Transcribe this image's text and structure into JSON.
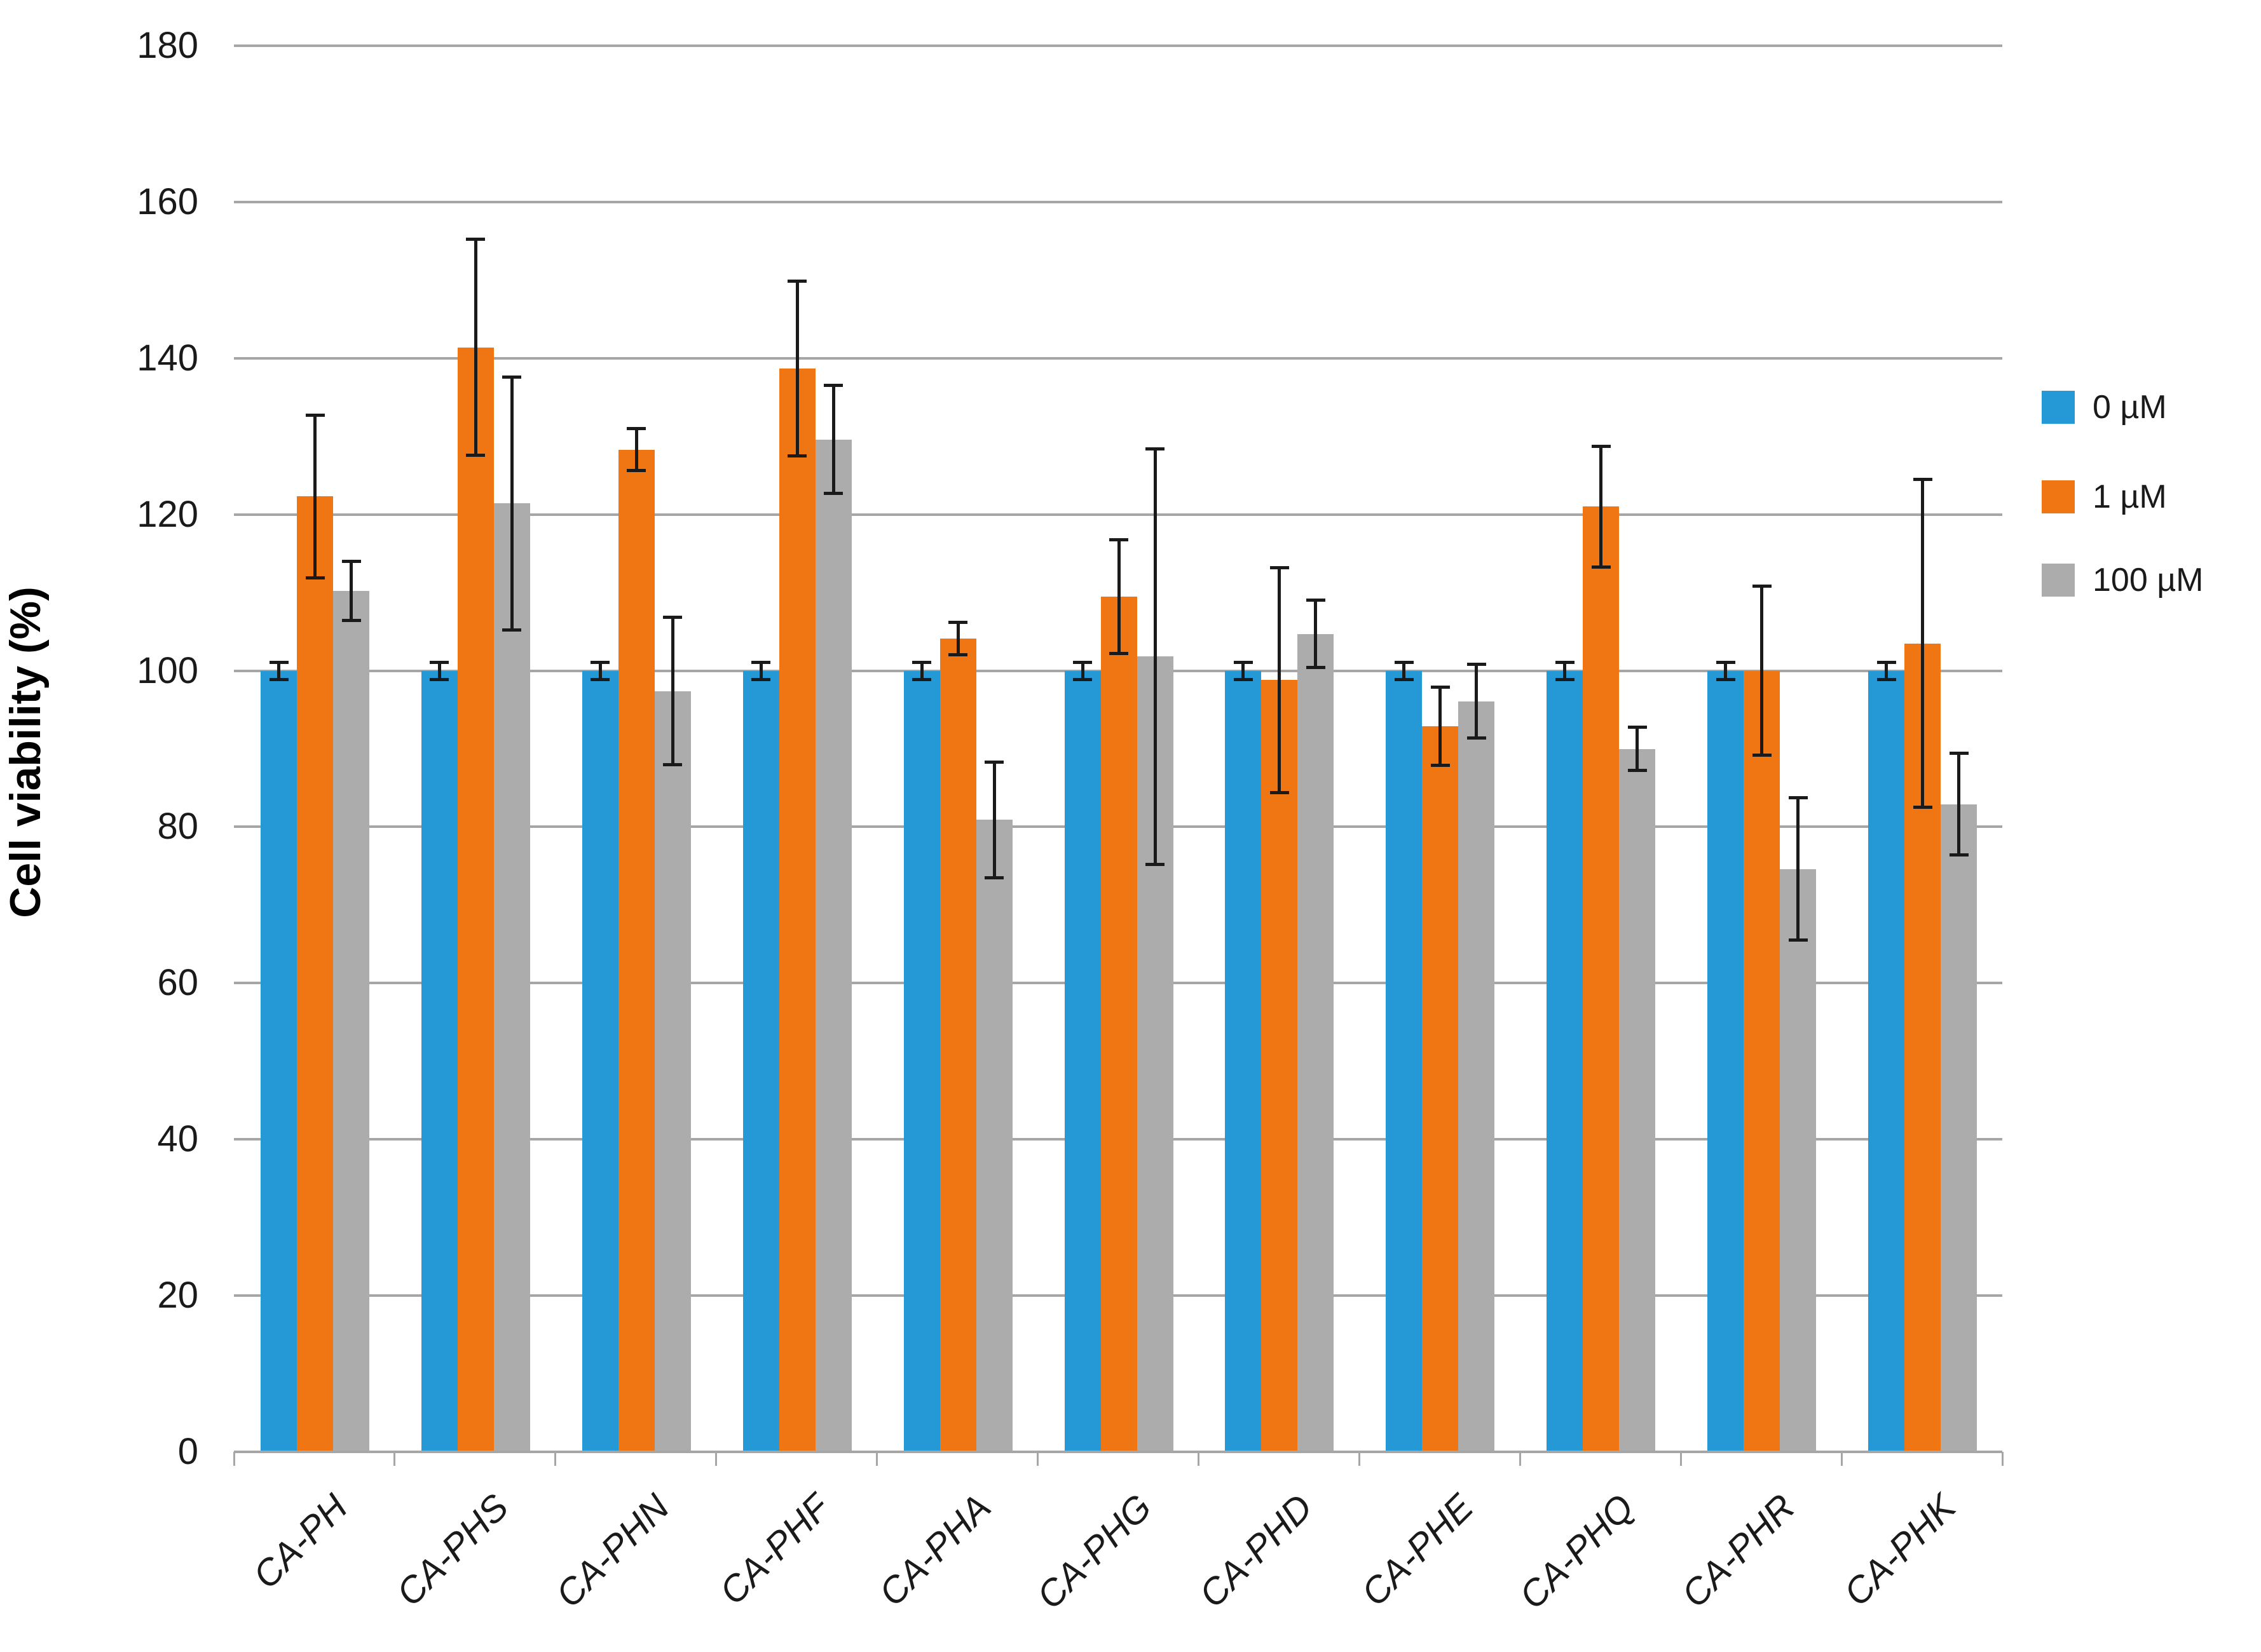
{
  "chart_data": {
    "type": "bar",
    "title": "",
    "xlabel": "",
    "ylabel": "Cell viability (%)",
    "ylim": [
      0,
      180
    ],
    "ytick_step": 20,
    "y_ticks": [
      0,
      20,
      40,
      60,
      80,
      100,
      120,
      140,
      160,
      180
    ],
    "grid": "horizontal",
    "legend_position": "right",
    "error_bars": true,
    "categories": [
      "CA-PH",
      "CA-PHS",
      "CA-PHN",
      "CA-PHF",
      "CA-PHA",
      "CA-PHG",
      "CA-PHD",
      "CA-PHE",
      "CA-PHQ",
      "CA-PHR",
      "CA-PHK"
    ],
    "series": [
      {
        "name": "0 µM",
        "color": "#2599d6",
        "values": [
          100,
          100,
          100,
          100,
          100,
          100,
          100,
          100,
          100,
          100,
          100
        ],
        "errors": [
          1.1,
          1.1,
          1.1,
          1.1,
          1.1,
          1.1,
          1.1,
          1.1,
          1.1,
          1.1,
          1.1
        ]
      },
      {
        "name": "1 µM",
        "color": "#ef7612",
        "values": [
          122.3,
          141.4,
          128.3,
          138.7,
          104.1,
          109.5,
          98.8,
          92.9,
          121.0,
          100.0,
          103.5
        ],
        "errors": [
          10.4,
          13.8,
          2.7,
          11.2,
          2.1,
          7.3,
          14.4,
          5.0,
          7.7,
          10.8,
          21.0
        ]
      },
      {
        "name": "100 µM",
        "color": "#acacac",
        "values": [
          110.2,
          121.4,
          97.4,
          129.6,
          80.9,
          101.8,
          104.7,
          96.1,
          90.0,
          74.6,
          82.9
        ],
        "errors": [
          3.8,
          16.2,
          9.4,
          6.9,
          7.4,
          26.6,
          4.3,
          4.7,
          2.8,
          9.1,
          6.5
        ]
      }
    ]
  },
  "colors": {
    "gridline": "#a6a6a6",
    "axis": "#a6a6a6",
    "error_bar": "#1a1a1a",
    "text": "#1a1a1a",
    "background": "#ffffff"
  }
}
